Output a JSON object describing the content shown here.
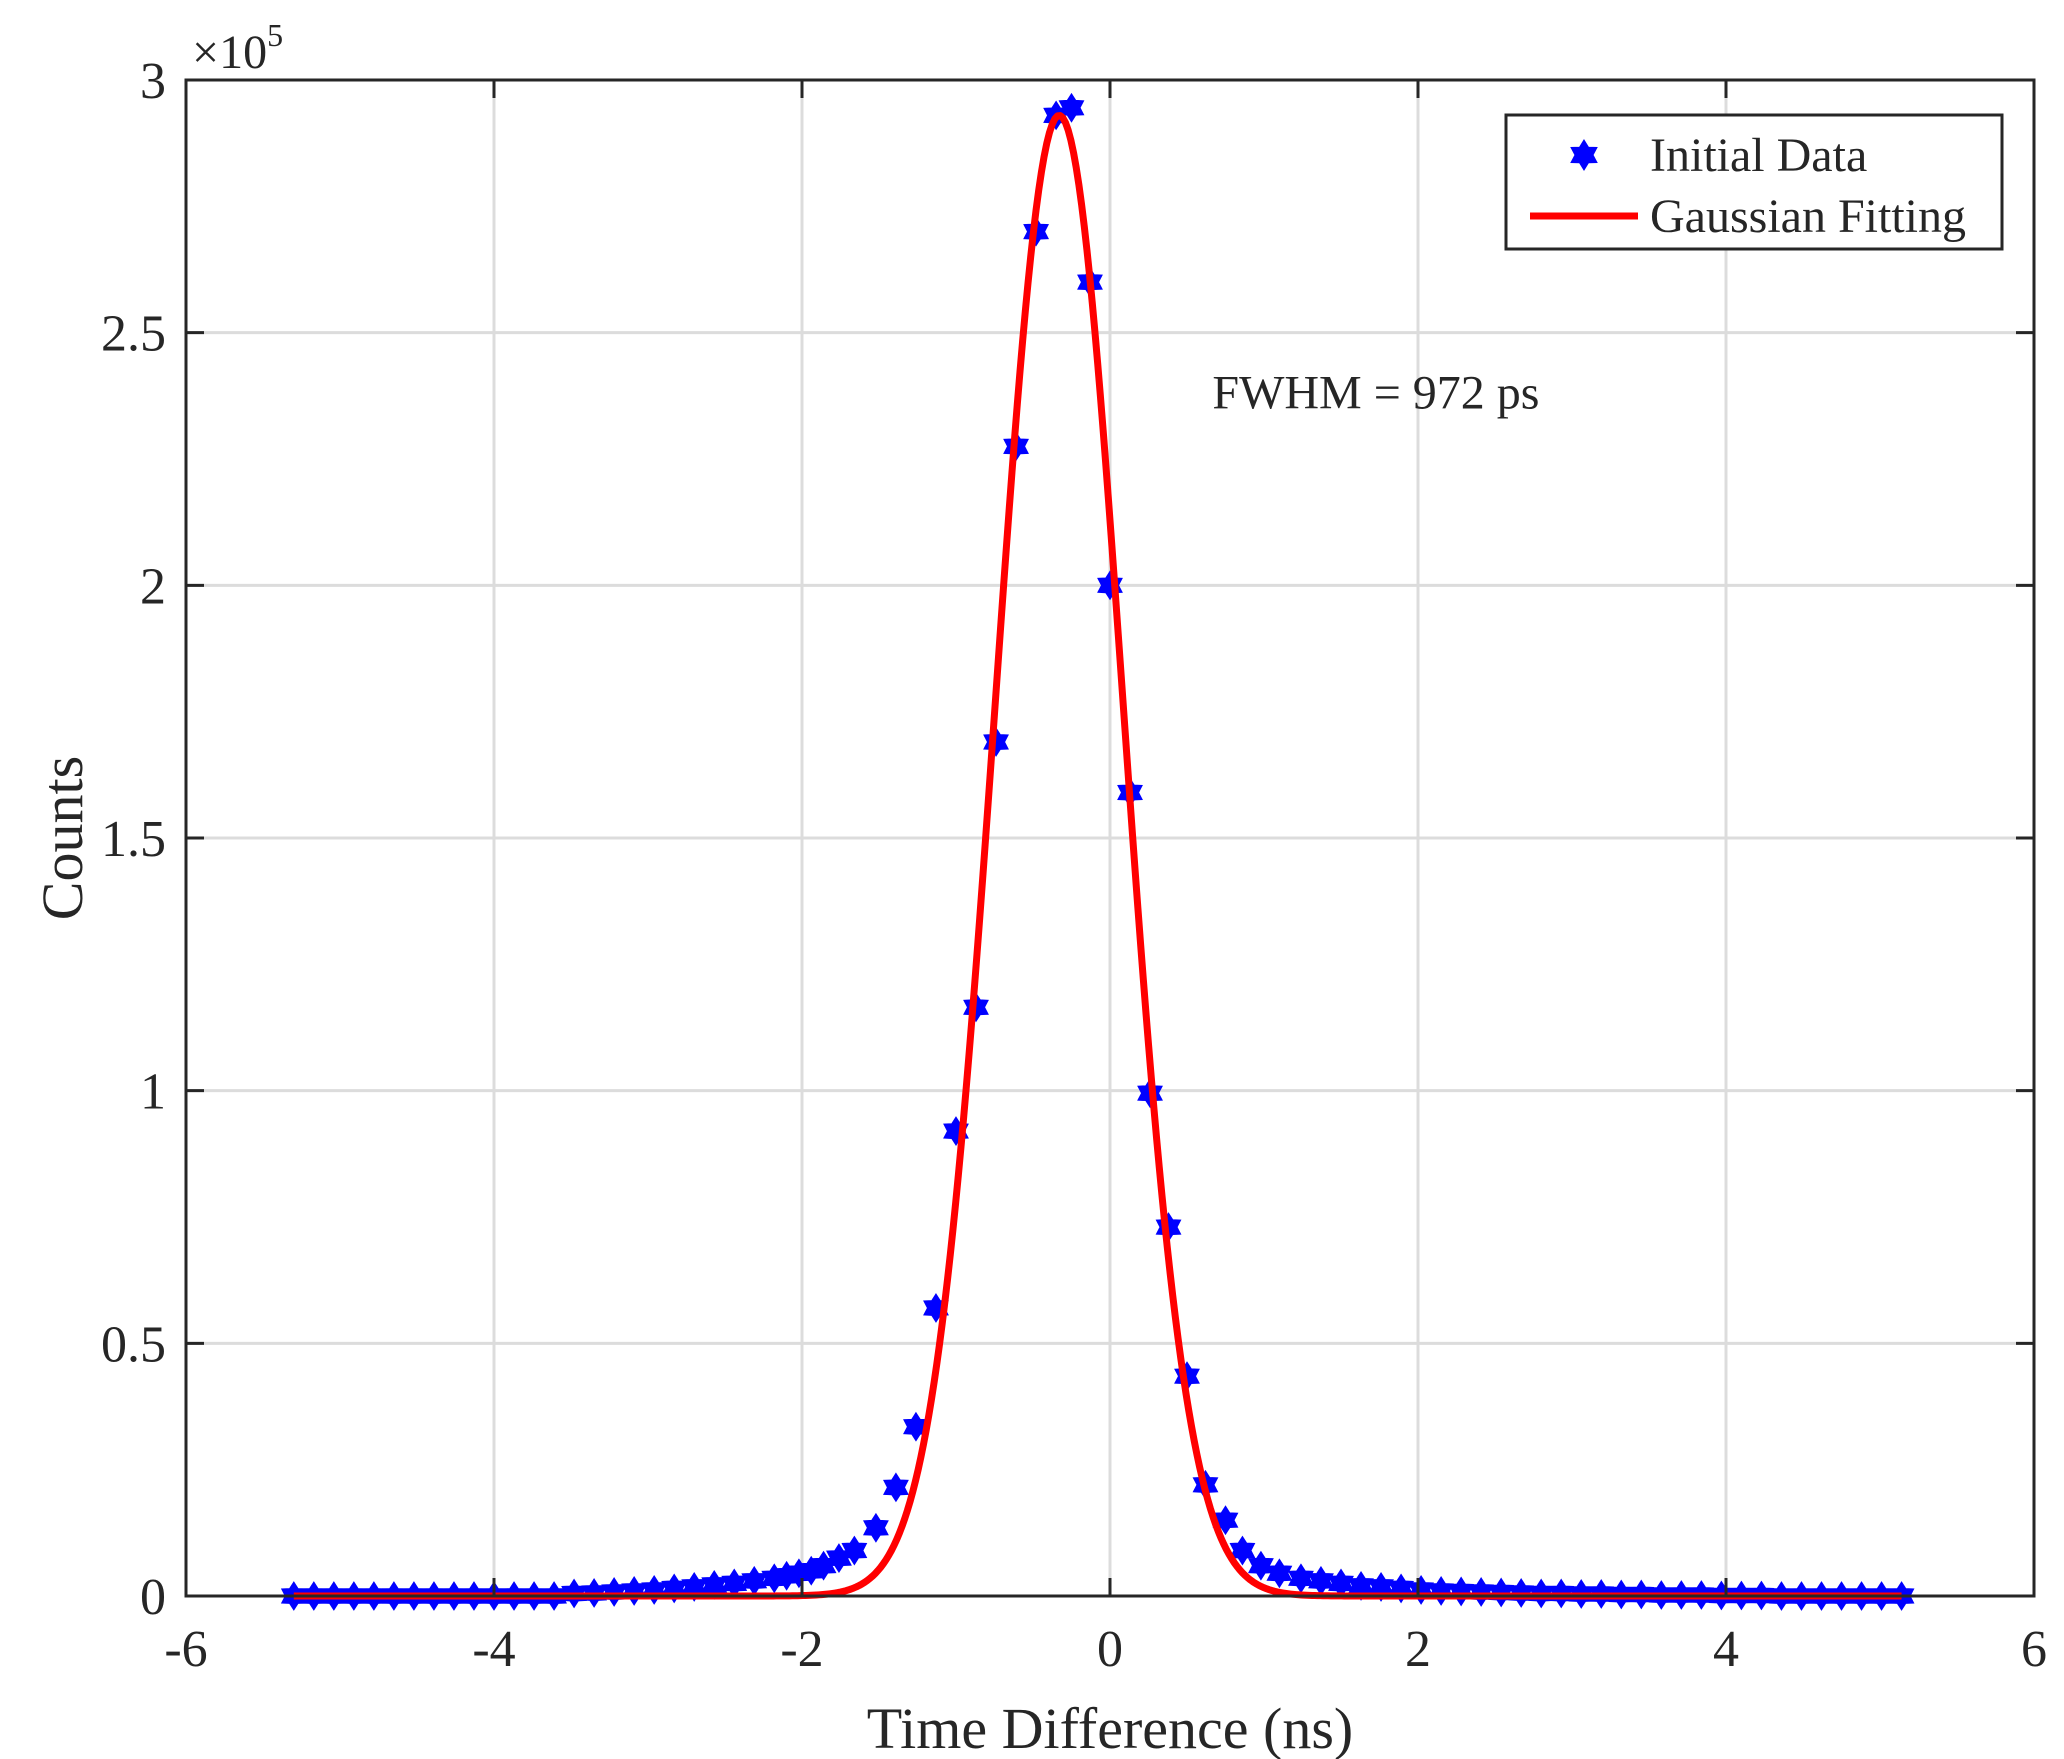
{
  "chart_data": {
    "type": "scatter",
    "xlabel": "Time Difference (ns)",
    "ylabel": "Counts",
    "xlim": [
      -6,
      6
    ],
    "ylim": [
      0,
      300000
    ],
    "xticks": [
      -6,
      -4,
      -2,
      0,
      2,
      4,
      6
    ],
    "xtick_labels": [
      "-6",
      "-4",
      "-2",
      "0",
      "2",
      "4",
      "6"
    ],
    "yticks": [
      0,
      50000,
      100000,
      150000,
      200000,
      250000,
      300000
    ],
    "ytick_labels": [
      "0",
      "0.5",
      "1",
      "1.5",
      "2",
      "2.5",
      "3"
    ],
    "y_exponent": {
      "base": "×10",
      "power": "5"
    },
    "grid": true,
    "legend_position": "top-right",
    "annotation": {
      "text": "FWHM =  972 ps",
      "x": 0.6,
      "y": 234000
    },
    "series": [
      {
        "name": "Initial Data",
        "kind": "markers",
        "marker": "hexagram",
        "color": "#0000ff",
        "x": [
          -5.3,
          -5.17,
          -5.04,
          -4.91,
          -4.78,
          -4.65,
          -4.52,
          -4.39,
          -4.26,
          -4.13,
          -4.0,
          -3.87,
          -3.74,
          -3.61,
          -3.48,
          -3.35,
          -3.22,
          -3.09,
          -2.96,
          -2.83,
          -2.7,
          -2.57,
          -2.44,
          -2.31,
          -2.18,
          -2.1,
          -2.02,
          -1.94,
          -1.86,
          -1.76,
          -1.66,
          -1.52,
          -1.39,
          -1.26,
          -1.13,
          -1.0,
          -0.87,
          -0.74,
          -0.61,
          -0.48,
          -0.35,
          -0.25,
          -0.13,
          0.0,
          0.13,
          0.26,
          0.38,
          0.5,
          0.62,
          0.75,
          0.86,
          0.98,
          1.1,
          1.24,
          1.37,
          1.5,
          1.63,
          1.76,
          1.89,
          2.02,
          2.15,
          2.28,
          2.41,
          2.54,
          2.67,
          2.8,
          2.93,
          3.06,
          3.19,
          3.32,
          3.45,
          3.58,
          3.71,
          3.84,
          3.97,
          4.1,
          4.23,
          4.36,
          4.49,
          4.62,
          4.75,
          4.88,
          5.01,
          5.14
        ],
        "y": [
          0,
          0,
          0,
          0,
          0,
          0,
          0,
          0,
          0,
          0,
          0,
          0,
          0,
          0,
          500,
          600,
          800,
          1000,
          1200,
          1500,
          1800,
          2200,
          2500,
          3000,
          3500,
          4000,
          4500,
          5000,
          6000,
          7500,
          9000,
          13500,
          21500,
          33500,
          57000,
          92000,
          116500,
          169000,
          227500,
          270000,
          293000,
          294500,
          260000,
          200000,
          159000,
          99500,
          73000,
          43500,
          22000,
          15000,
          9000,
          6000,
          4500,
          3500,
          3000,
          2500,
          2000,
          1800,
          1500,
          1200,
          1000,
          900,
          800,
          700,
          600,
          500,
          500,
          400,
          400,
          300,
          300,
          200,
          200,
          200,
          100,
          100,
          100,
          0,
          0,
          0,
          0,
          0,
          0,
          0
        ]
      },
      {
        "name": "Gaussian Fitting",
        "kind": "line",
        "color": "#ff0000",
        "function": "gaussian",
        "amplitude": 293000,
        "center": -0.33,
        "fwhm": 0.972,
        "x_range": [
          -5.3,
          5.14
        ]
      }
    ]
  }
}
